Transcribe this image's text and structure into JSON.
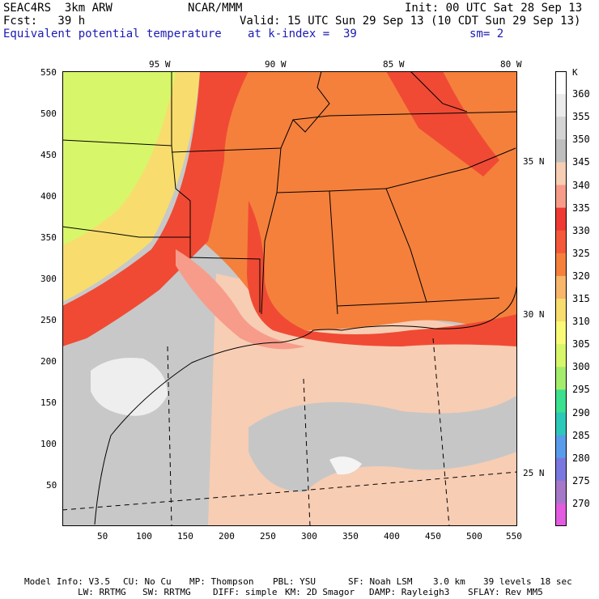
{
  "header": {
    "title": "SEAC4RS  3km ARW",
    "center": "NCAR/MMM",
    "init": "Init: 00 UTC Sat 28 Sep 13",
    "fcst": "Fcst:   39 h",
    "valid": "Valid: 15 UTC Sun 29 Sep 13 (10 CDT Sun 29 Sep 13)",
    "field": "Equivalent potential temperature",
    "level": "at k-index =  39",
    "smoothing": "sm= 2"
  },
  "map": {
    "lon_labels": [
      "95 W",
      "90 W",
      "85 W",
      "80 W"
    ],
    "lat_labels": [
      "35 N",
      "30 N",
      "25 N"
    ],
    "x_ticks": [
      "50",
      "100",
      "150",
      "200",
      "250",
      "300",
      "350",
      "400",
      "450",
      "500",
      "550"
    ],
    "y_ticks": [
      "550",
      "500",
      "450",
      "400",
      "350",
      "300",
      "250",
      "200",
      "150",
      "100",
      "50"
    ]
  },
  "legend": {
    "unit": "K",
    "levels": [
      "360",
      "355",
      "350",
      "345",
      "340",
      "335",
      "330",
      "325",
      "320",
      "315",
      "310",
      "305",
      "300",
      "295",
      "290",
      "285",
      "280",
      "275",
      "270"
    ],
    "colors": [
      "#ffffff",
      "#ebebeb",
      "#d4d4d4",
      "#bebebe",
      "#f7cdb4",
      "#f79c8a",
      "#ee3a32",
      "#f4583a",
      "#f4803c",
      "#f7b66a",
      "#f8dd6e",
      "#f8fa78",
      "#d8f66a",
      "#a4ec6c",
      "#3ce08e",
      "#2ec8b8",
      "#5a9cec",
      "#7a78e0",
      "#a678c8",
      "#e25ce0"
    ]
  },
  "footer": {
    "line1": [
      "Model Info: V3.5",
      "CU: No Cu",
      "MP: Thompson",
      "PBL: YSU",
      "SF: Noah LSM",
      "3.0 km",
      "39 levels",
      "18 sec"
    ],
    "line2": [
      "LW: RRTMG",
      "SW: RRTMG",
      "DIFF: simple",
      "KM: 2D Smagor",
      "DAMP: Rayleigh3",
      "SFLAY: Rev MM5"
    ]
  }
}
